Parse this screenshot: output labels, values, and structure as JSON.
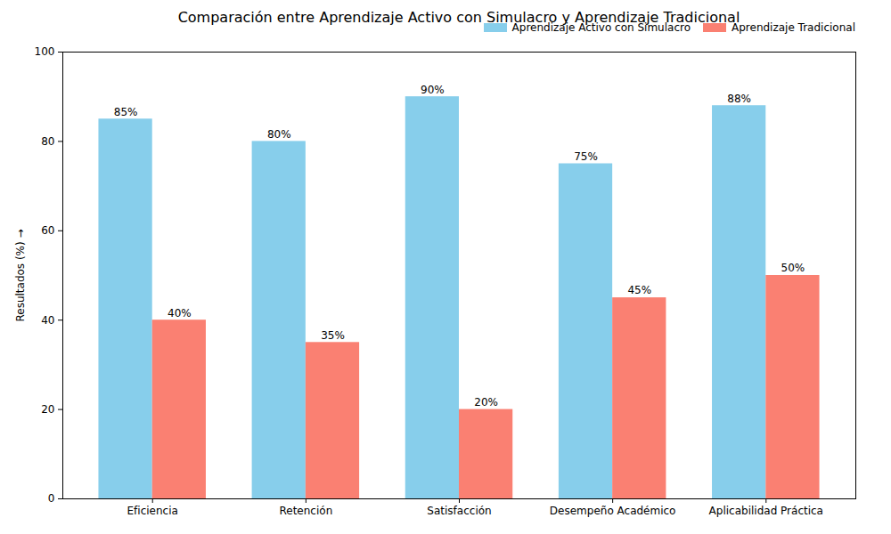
{
  "chart_data": {
    "type": "bar",
    "title": "Comparación entre Aprendizaje Activo con Simulacro y Aprendizaje Tradicional",
    "y_label": "Resultados (%)",
    "categories": [
      "Eficiencia",
      "Retención",
      "Satisfacción",
      "Desempeño Académico",
      "Aplicabilidad Práctica"
    ],
    "series": [
      {
        "name": "Aprendizaje Activo con Simulacro",
        "color": "#87ceeb",
        "values": [
          85,
          80,
          90,
          75,
          88
        ],
        "value_labels": [
          "85%",
          "80%",
          "90%",
          "75%",
          "88%"
        ]
      },
      {
        "name": "Aprendizaje Tradicional",
        "color": "#fa8072",
        "values": [
          40,
          35,
          20,
          45,
          50
        ],
        "value_labels": [
          "40%",
          "35%",
          "20%",
          "45%",
          "50%"
        ]
      }
    ],
    "ylim": [
      0,
      100
    ],
    "yticks": [
      0,
      20,
      40,
      60,
      80,
      100
    ],
    "grid": false,
    "legend": "upper right",
    "data_labels": true
  }
}
